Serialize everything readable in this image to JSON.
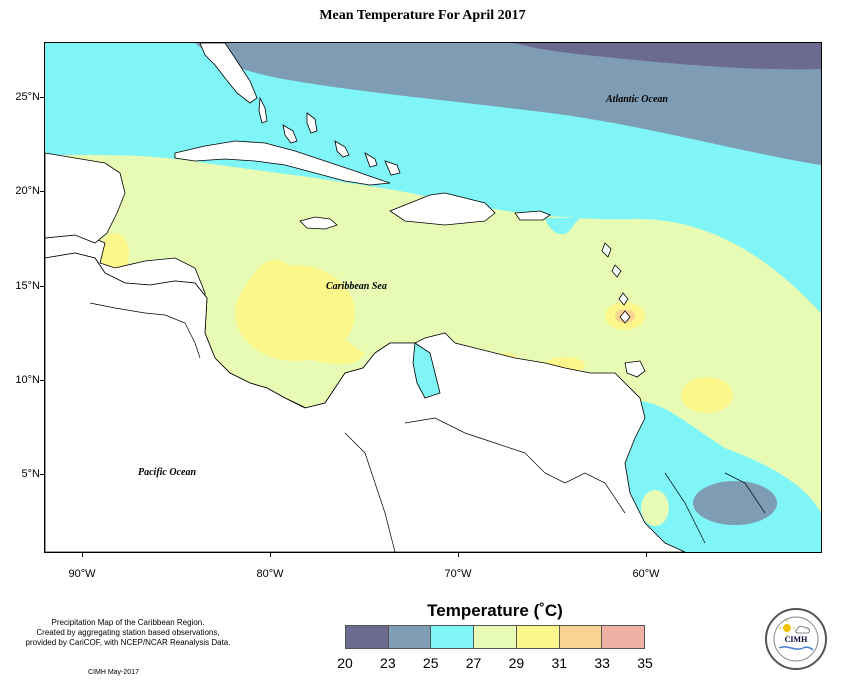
{
  "title": "Mean Temperature For April 2017",
  "latitude_labels": [
    "25°N",
    "20°N",
    "15°N",
    "10°N",
    "5°N"
  ],
  "longitude_labels": [
    "90°W",
    "80°W",
    "70°W",
    "60°W"
  ],
  "ocean_labels": {
    "atlantic": "Atlantic Ocean",
    "caribbean": "Caribbean Sea",
    "pacific": "Pacific Ocean"
  },
  "footer": {
    "line1": "Precipitation Map of the Caribbean Region.",
    "line2": "Created by aggregating station based observations,",
    "line3": "provided by CariCOF, with NCEP/NCAR Reanalysis Data.",
    "credit": "CIMH May-2017"
  },
  "legend": {
    "title": "Temperature (˚C)",
    "ticks": [
      "20",
      "23",
      "25",
      "27",
      "29",
      "31",
      "33",
      "35"
    ],
    "colors": [
      "#6b6b8f",
      "#7f9cb5",
      "#7ff5f7",
      "#e8fbb4",
      "#fbf78a",
      "#f8d490",
      "#efb1a4"
    ]
  },
  "logo": {
    "text": "CIMH",
    "icon": "sun-cloud-icon"
  },
  "colors": {
    "land": "#ffffff",
    "coast": "#000000"
  }
}
